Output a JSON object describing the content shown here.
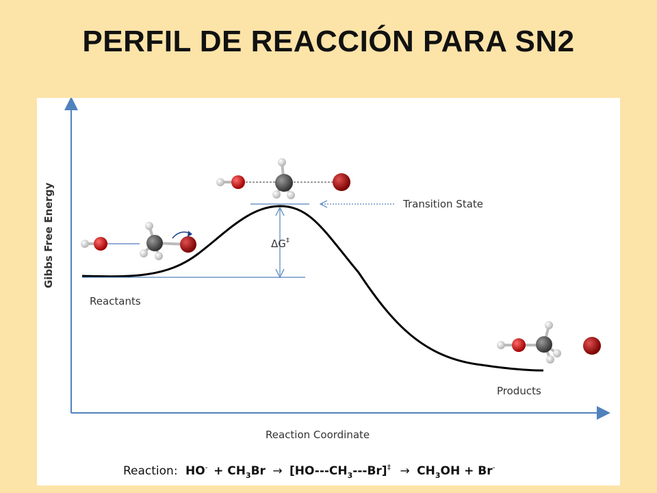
{
  "slide": {
    "title": "PERFIL DE REACCIÓN PARA SN2"
  },
  "diagram": {
    "y_axis_label": "Gibbs Free Energy",
    "x_axis_label": "Reaction Coordinate",
    "reactants_label": "Reactants",
    "products_label": "Products",
    "transition_state_label": "Transition State",
    "activation_energy_label": "ΔG",
    "activation_energy_mark": "‡"
  },
  "equation": {
    "prefix": "Reaction:",
    "ho": "HO",
    "ho_charge": "-",
    "plus1": "+ CH",
    "sub1": "3",
    "br1": "Br",
    "arrow1": "→",
    "ts_open": "[HO---CH",
    "sub2": "3",
    "ts_close": "---Br]",
    "ts_mark": "‡",
    "arrow2": "→",
    "ch3oh_a": "CH",
    "sub3": "3",
    "ch3oh_b": "OH + Br",
    "br_charge": "-"
  },
  "colors": {
    "background": "#FCE3A8",
    "axis": "#4F81BD",
    "curve": "#000000",
    "oxygen": "#CC1111",
    "carbon": "#555555",
    "hydrogen": "#E6E6E6",
    "bromine": "#AA1111"
  }
}
